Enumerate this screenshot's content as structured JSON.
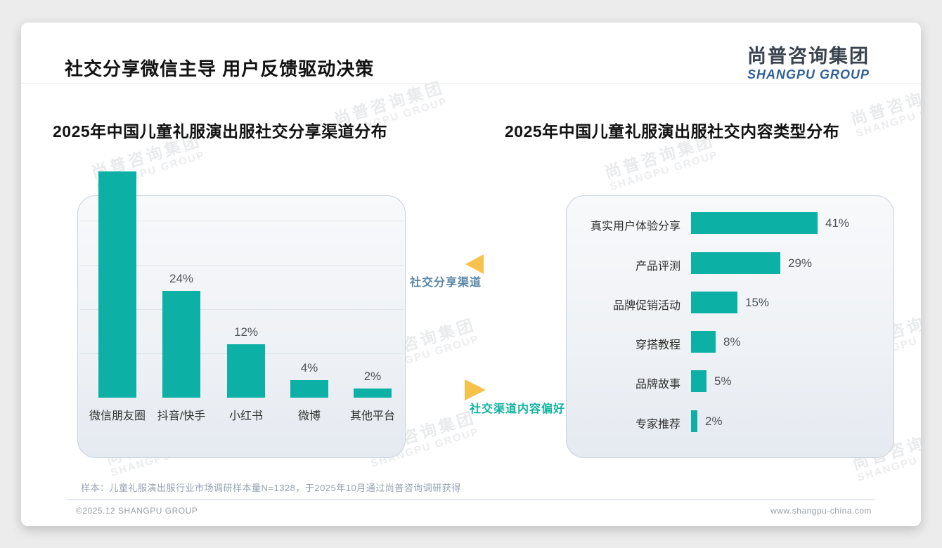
{
  "header": {
    "title": "社交分享微信主导 用户反馈驱动决策",
    "logo_cn": "尚普咨询集团",
    "logo_en": "SHANGPU GROUP"
  },
  "watermark": {
    "cn": "尚普咨询集团",
    "en": "SHANGPU GROUP"
  },
  "annotations": {
    "share_channel": "社交分享渠道",
    "content_preference": "社交渠道内容偏好"
  },
  "footnote": "样本：儿童礼服演出服行业市场调研样本量N=1328，于2025年10月通过尚普咨询调研获得",
  "footer": {
    "left": "©2025.12 SHANGPU GROUP",
    "right": "www.shangpu-china.com"
  },
  "colors": {
    "teal_bar": "#0CB0A5",
    "amber_triangle": "#F6C24B",
    "annotation_blue": "#5B87A8",
    "annotation_teal": "#12B3A0",
    "logo_blue": "#2F5F9D"
  },
  "chart_data": [
    {
      "type": "bar",
      "orientation": "vertical",
      "title": "2025年中国儿童礼服演出服社交分享渠道分布",
      "categories": [
        "微信朋友圈",
        "抖音/快手",
        "小红书",
        "微博",
        "其他平台"
      ],
      "values": [
        51,
        24,
        12,
        4,
        2
      ],
      "value_labels": [
        "",
        "24%",
        "12%",
        "4%",
        "2%"
      ],
      "xlabel": "",
      "ylabel": "",
      "grid": "faint-horizontal",
      "legend": "none",
      "bar_color": "#0CB0A5"
    },
    {
      "type": "bar",
      "orientation": "horizontal",
      "title": "2025年中国儿童礼服演出服社交内容类型分布",
      "categories": [
        "真实用户体验分享",
        "产品评测",
        "品牌促销活动",
        "穿搭教程",
        "品牌故事",
        "专家推荐"
      ],
      "values": [
        41,
        29,
        15,
        8,
        5,
        2
      ],
      "value_labels": [
        "41%",
        "29%",
        "15%",
        "8%",
        "5%",
        "2%"
      ],
      "xlabel": "",
      "ylabel": "",
      "grid": "off",
      "legend": "none",
      "bar_color": "#0CB0A5"
    }
  ]
}
